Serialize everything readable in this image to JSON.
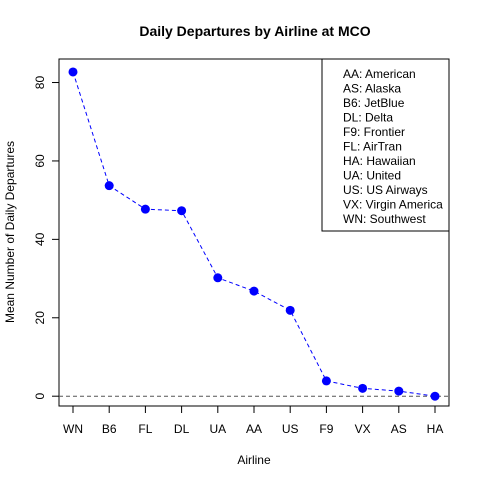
{
  "chart_data": {
    "type": "line",
    "title": "Daily Departures by Airline at MCO",
    "xlabel": "Airline",
    "ylabel": "Mean Number of Daily Departures",
    "categories": [
      "WN",
      "B6",
      "FL",
      "DL",
      "UA",
      "AA",
      "US",
      "F9",
      "VX",
      "AS",
      "HA"
    ],
    "values": [
      82.7,
      53.7,
      47.7,
      47.3,
      30.2,
      26.8,
      21.9,
      3.9,
      2.0,
      1.3,
      0.0
    ],
    "ylim": [
      -2.5,
      86
    ],
    "yticks": [
      0,
      20,
      40,
      60,
      80
    ],
    "reference_line": 0,
    "grid": false,
    "legend_position": "top-right",
    "legend_entries": [
      "AA: American",
      "AS: Alaska",
      "B6: JetBlue",
      "DL: Delta",
      "F9: Frontier",
      "FL: AirTran",
      "HA: Hawaiian",
      "UA: United",
      "US: US Airways",
      "VX: Virgin America",
      "WN: Southwest"
    ],
    "colors": {
      "points": "#0000ff",
      "line": "#0000ff",
      "reference_line": "#555555",
      "axis": "#000000"
    }
  }
}
